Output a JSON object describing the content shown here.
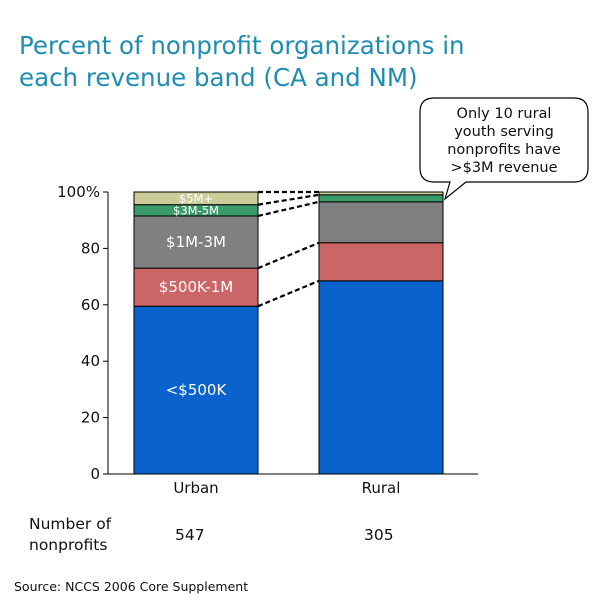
{
  "title": [
    "Percent of nonprofit organizations in",
    "each revenue band (CA and NM)"
  ],
  "callout": [
    "Only 10 rural",
    "youth serving",
    "nonprofits have",
    ">$3M revenue"
  ],
  "count_heading": [
    "Number of",
    "nonprofits"
  ],
  "counts": [
    "547",
    "305"
  ],
  "source": "Source: NCCS 2006 Core Supplement",
  "colors": {
    "lt500k": "#0a63cc",
    "500k_1m": "#cc6666",
    "1m_3m": "#808080",
    "3m_5m": "#3a9a6a",
    "5m_plus": "#cccc99",
    "title": "#1f8db0"
  },
  "chart_data": {
    "type": "bar",
    "stacked": true,
    "categories": [
      "Urban",
      "Rural"
    ],
    "series": [
      {
        "name": "<$500K",
        "values": [
          59.5,
          68.5
        ],
        "color": "#0a63cc"
      },
      {
        "name": "$500K-1M",
        "values": [
          13.5,
          13.5
        ],
        "color": "#cc6666"
      },
      {
        "name": "$1M-3M",
        "values": [
          18.5,
          14.5
        ],
        "color": "#808080"
      },
      {
        "name": "$3M-5M",
        "values": [
          4,
          2.5
        ],
        "color": "#3a9a6a"
      },
      {
        "name": "$5M+",
        "values": [
          4.5,
          1
        ],
        "color": "#cccc99"
      }
    ],
    "yticks": [
      "0",
      "20",
      "40",
      "60",
      "80",
      "100%"
    ],
    "ylim": [
      0,
      100
    ],
    "xlabel": "",
    "ylabel": "",
    "grid": false
  }
}
